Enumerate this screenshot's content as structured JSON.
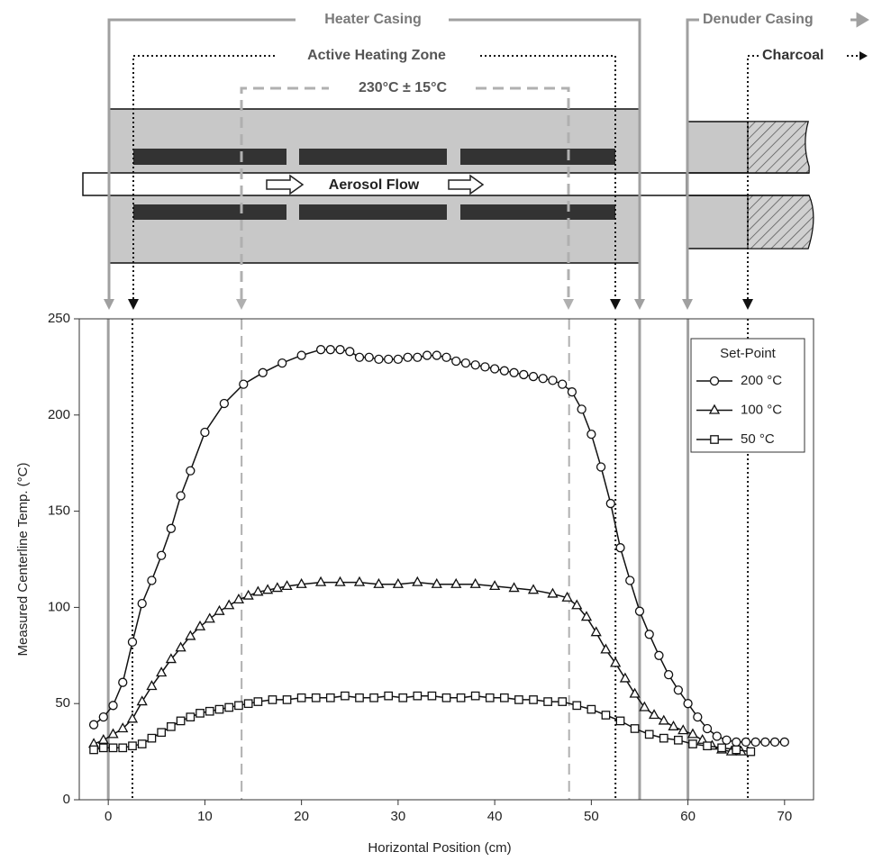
{
  "chart_data": {
    "type": "line",
    "x_label": "Horizontal Position (cm)",
    "y_label": "Measured Centerline Temp. (°C)",
    "xlim": [
      -3,
      73
    ],
    "xticks": [
      0,
      10,
      20,
      30,
      40,
      50,
      60,
      70
    ],
    "ylim": [
      0,
      250
    ],
    "yticks": [
      0,
      50,
      100,
      150,
      200,
      250
    ],
    "legend_title": "Set-Point",
    "legend_position": "upper right",
    "annotations": [
      "Heater Casing",
      "Active Heating Zone",
      "230°C ± 15°C",
      "Aerosol Flow",
      "Denuder Casing",
      "Charcoal"
    ],
    "reference_lines": [
      {
        "x": 0,
        "color": "#a0a0a0",
        "style": "solid"
      },
      {
        "x": 2.5,
        "color": "#111111",
        "style": "dotted"
      },
      {
        "x": 13.8,
        "color": "#b0b0b0",
        "style": "dashed"
      },
      {
        "x": 47.7,
        "color": "#b0b0b0",
        "style": "dashed"
      },
      {
        "x": 52.5,
        "color": "#111111",
        "style": "dotted"
      },
      {
        "x": 55,
        "color": "#a0a0a0",
        "style": "solid"
      },
      {
        "x": 60,
        "color": "#a0a0a0",
        "style": "solid"
      },
      {
        "x": 66.2,
        "color": "#111111",
        "style": "dotted"
      }
    ],
    "series": [
      {
        "name": "200 °C",
        "marker": "circle",
        "color": "#111111",
        "x": [
          -1.5,
          -0.5,
          0.5,
          1.5,
          2.5,
          3.5,
          4.5,
          5.5,
          6.5,
          7.5,
          8.5,
          10,
          12,
          14,
          16,
          18,
          20,
          22,
          23,
          24,
          25,
          26,
          27,
          28,
          29,
          30,
          31,
          32,
          33,
          34,
          35,
          36,
          37,
          38,
          39,
          40,
          41,
          42,
          43,
          44,
          45,
          46,
          47,
          48,
          49,
          50,
          51,
          52,
          53,
          54,
          55,
          56,
          57,
          58,
          59,
          60,
          61,
          62,
          63,
          64,
          65,
          66,
          67,
          68,
          69,
          70
        ],
        "values": [
          39,
          43,
          49,
          61,
          82,
          102,
          114,
          127,
          141,
          158,
          171,
          191,
          206,
          216,
          222,
          227,
          231,
          234,
          234,
          234,
          233,
          230,
          230,
          229,
          229,
          229,
          230,
          230,
          231,
          231,
          230,
          228,
          227,
          226,
          225,
          224,
          223,
          222,
          221,
          220,
          219,
          218,
          216,
          212,
          203,
          190,
          173,
          154,
          131,
          114,
          98,
          86,
          75,
          65,
          57,
          50,
          43,
          37,
          33,
          31,
          30,
          30,
          30,
          30,
          30,
          30
        ]
      },
      {
        "name": "100 °C",
        "marker": "triangle",
        "color": "#111111",
        "x": [
          -1.5,
          -0.5,
          0.5,
          1.5,
          2.5,
          3.5,
          4.5,
          5.5,
          6.5,
          7.5,
          8.5,
          9.5,
          10.5,
          11.5,
          12.5,
          13.5,
          14.5,
          15.5,
          16.5,
          17.5,
          18.5,
          20,
          22,
          24,
          26,
          28,
          30,
          32,
          34,
          36,
          38,
          40,
          42,
          44,
          46,
          47.5,
          48.5,
          49.5,
          50.5,
          51.5,
          52.5,
          53.5,
          54.5,
          55.5,
          56.5,
          57.5,
          58.5,
          59.5,
          60.5,
          61.5,
          62.5,
          63.5,
          64.5,
          65.5
        ],
        "values": [
          29,
          31,
          34,
          37,
          42,
          51,
          59,
          66,
          73,
          79,
          85,
          90,
          94,
          98,
          101,
          104,
          106,
          108,
          109,
          110,
          111,
          112,
          113,
          113,
          113,
          112,
          112,
          113,
          112,
          112,
          112,
          111,
          110,
          109,
          107,
          105,
          101,
          95,
          87,
          78,
          71,
          63,
          55,
          48,
          44,
          41,
          38,
          36,
          34,
          31,
          28,
          26,
          25,
          25
        ]
      },
      {
        "name": "50 °C",
        "marker": "square",
        "color": "#111111",
        "x": [
          -1.5,
          -0.5,
          0.5,
          1.5,
          2.5,
          3.5,
          4.5,
          5.5,
          6.5,
          7.5,
          8.5,
          9.5,
          10.5,
          11.5,
          12.5,
          13.5,
          14.5,
          15.5,
          17,
          18.5,
          20,
          21.5,
          23,
          24.5,
          26,
          27.5,
          29,
          30.5,
          32,
          33.5,
          35,
          36.5,
          38,
          39.5,
          41,
          42.5,
          44,
          45.5,
          47,
          48.5,
          50,
          51.5,
          53,
          54.5,
          56,
          57.5,
          59,
          60.5,
          62,
          63.5,
          65,
          66.5
        ],
        "values": [
          26,
          27,
          27,
          27,
          28,
          29,
          32,
          35,
          38,
          41,
          43,
          45,
          46,
          47,
          48,
          49,
          50,
          51,
          52,
          52,
          53,
          53,
          53,
          54,
          53,
          53,
          54,
          53,
          54,
          54,
          53,
          53,
          54,
          53,
          53,
          52,
          52,
          51,
          51,
          49,
          47,
          44,
          41,
          37,
          34,
          32,
          31,
          29,
          28,
          27,
          26,
          25
        ]
      }
    ]
  }
}
